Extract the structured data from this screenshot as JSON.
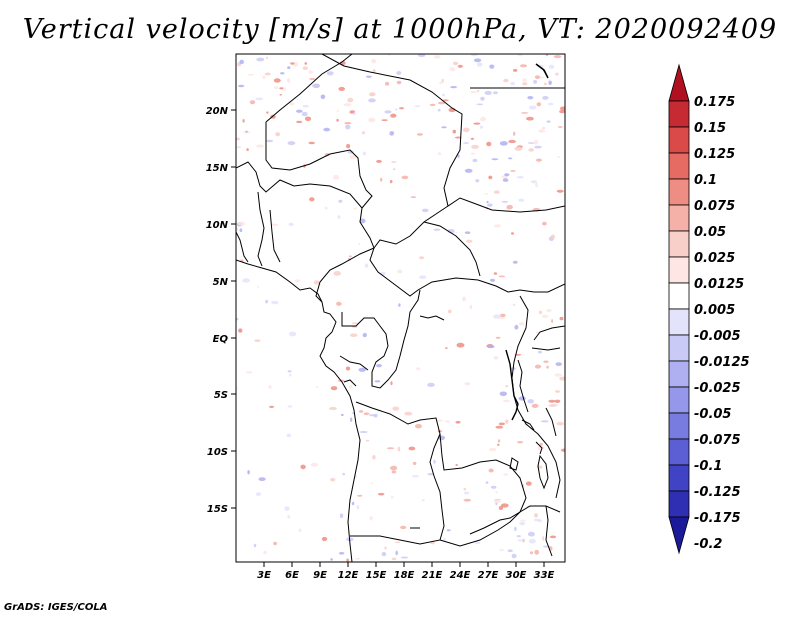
{
  "title": "Vertical velocity [m/s] at 1000hPa, VT: 2020092409",
  "footer": "GrADS: IGES/COLA",
  "map": {
    "region": "Central Africa",
    "lon_range": [
      0,
      35
    ],
    "lat_range": [
      -20,
      25
    ],
    "lat_labels": [
      "20N",
      "15N",
      "10N",
      "5N",
      "EQ",
      "5S",
      "10S",
      "15S"
    ],
    "lon_labels": [
      "3E",
      "6E",
      "9E",
      "12E",
      "15E",
      "18E",
      "21E",
      "24E",
      "27E",
      "30E",
      "33E"
    ]
  },
  "colorbar": {
    "labels": [
      "0.175",
      "0.15",
      "0.125",
      "0.1",
      "0.075",
      "0.05",
      "0.025",
      "0.0125",
      "0.005",
      "-0.005",
      "-0.0125",
      "-0.025",
      "-0.05",
      "-0.075",
      "-0.1",
      "-0.125",
      "-0.175",
      "-0.2"
    ],
    "colors": [
      "#b01020",
      "#c62a32",
      "#d94a48",
      "#e56b63",
      "#ee8d83",
      "#f5b0a8",
      "#f9cfc9",
      "#fde6e3",
      "#ffffff",
      "#e3e4fb",
      "#c9cbf6",
      "#aeb0f1",
      "#9497ea",
      "#787ce0",
      "#5c5fd4",
      "#4143c5",
      "#2e2fb2",
      "#1a1a9a"
    ]
  }
}
